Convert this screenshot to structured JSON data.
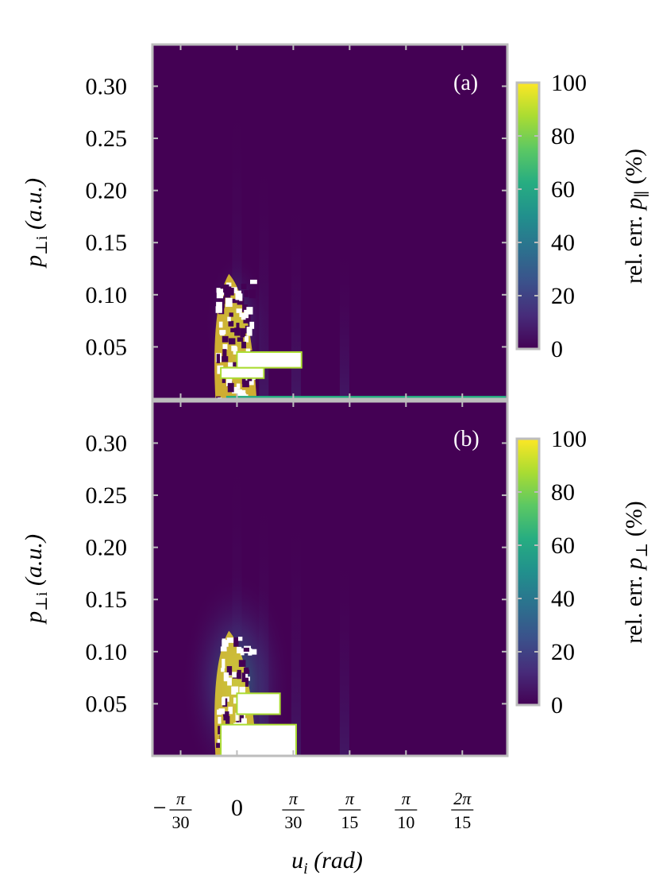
{
  "chart_data": [
    {
      "type": "heatmap",
      "panel_label": "(a)",
      "x_min": -0.1571,
      "x_max": 0.5026,
      "xlabel": "u_i (rad)",
      "ylabel": "p_⊥i (a.u.)",
      "ylim": [
        0,
        0.34
      ],
      "yticks": [
        "0.30",
        "0.25",
        "0.20",
        "0.15",
        "0.10",
        "0.05"
      ],
      "ytick_values": [
        0.3,
        0.25,
        0.2,
        0.15,
        0.1,
        0.05
      ],
      "colorbar": {
        "label": "rel. err. p_∥ (%)",
        "label_main": "rel. err. ",
        "label_var": "p",
        "label_sub": "∥",
        "label_unit": "(%)",
        "range": [
          0,
          100
        ],
        "ticks": [
          "100",
          "80",
          "60",
          "40",
          "20",
          "0"
        ],
        "tick_values": [
          100,
          80,
          60,
          40,
          20,
          0
        ],
        "colormap": "viridis"
      },
      "features": [
        {
          "region": "lobe",
          "x_range": [
            -0.04,
            0.01
          ],
          "y_range": [
            0.0,
            0.12
          ],
          "value": 100
        },
        {
          "region": "band",
          "x_range": [
            -0.03,
            0.05
          ],
          "y_range": [
            0.02,
            0.03
          ],
          "value": 100
        },
        {
          "region": "block",
          "x_range": [
            0.0,
            0.12
          ],
          "y_range": [
            0.03,
            0.045
          ],
          "value": 100
        },
        {
          "region": "baseline",
          "x_range": [
            -0.02,
            0.5
          ],
          "y_range": [
            0.0,
            0.003
          ],
          "value": 60
        }
      ]
    },
    {
      "type": "heatmap",
      "panel_label": "(b)",
      "x_min": -0.1571,
      "x_max": 0.5026,
      "xlabel": "u_i (rad)",
      "ylabel": "p_⊥i (a.u.)",
      "ylim": [
        0,
        0.34
      ],
      "yticks": [
        "0.30",
        "0.25",
        "0.20",
        "0.15",
        "0.10",
        "0.05"
      ],
      "ytick_values": [
        0.3,
        0.25,
        0.2,
        0.15,
        0.1,
        0.05
      ],
      "xticks": [
        {
          "label": "0",
          "value": 0
        },
        {
          "numerator": "π",
          "denominator": "30",
          "value": 0.10472
        },
        {
          "numerator": "π",
          "denominator": "15",
          "value": 0.20944
        },
        {
          "numerator": "π",
          "denominator": "10",
          "value": 0.31416
        },
        {
          "numerator": "2π",
          "denominator": "15",
          "value": 0.41888
        }
      ],
      "xtick_negative": {
        "sign": "−",
        "numerator": "π",
        "denominator": "30",
        "value": -0.10472
      },
      "colorbar": {
        "label": "rel. err. p_⊥ (%)",
        "label_main": "rel. err. ",
        "label_var": "p",
        "label_sub": "⊥",
        "label_unit": "(%)",
        "range": [
          0,
          100
        ],
        "ticks": [
          "100",
          "80",
          "60",
          "40",
          "20",
          "0"
        ],
        "tick_values": [
          100,
          80,
          60,
          40,
          20,
          0
        ],
        "colormap": "viridis"
      },
      "features": [
        {
          "region": "lobe",
          "x_range": [
            -0.04,
            0.01
          ],
          "y_range": [
            0.0,
            0.12
          ],
          "value": 100
        },
        {
          "region": "wide-block",
          "x_range": [
            -0.03,
            0.11
          ],
          "y_range": [
            0.0,
            0.03
          ],
          "value": 100
        },
        {
          "region": "upper-band",
          "x_range": [
            0.0,
            0.08
          ],
          "y_range": [
            0.04,
            0.06
          ],
          "value": 100
        }
      ]
    }
  ],
  "xaxis": {
    "label_var": "u",
    "label_sub": "i",
    "label_unit": "(rad)"
  },
  "yaxis": {
    "label_var": "p",
    "label_sub": "⊥i",
    "label_unit": "(a.u.)"
  },
  "colors": {
    "background": "#440154",
    "frame": "#bdbdbd",
    "viridis": [
      "#440154",
      "#472c7a",
      "#3b518b",
      "#2c718e",
      "#21908d",
      "#27ad81",
      "#5cc863",
      "#aadc32",
      "#fde725"
    ]
  }
}
